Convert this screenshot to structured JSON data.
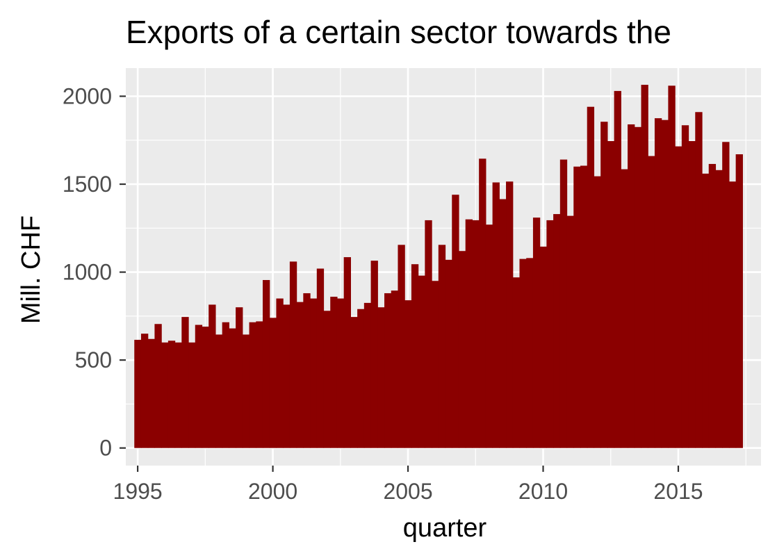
{
  "colors": {
    "panel_background": "#EBEBEB",
    "grid_major": "#FFFFFF",
    "bar_fill": "#8B0000",
    "tick_text": "#4D4D4D",
    "axis_ticks": "#333333"
  },
  "chart_data": {
    "type": "bar",
    "title": "Exports of a certain sector towards the",
    "xlabel": "quarter",
    "ylabel": "Mill. CHF",
    "xlim": [
      1994.56,
      2018.06
    ],
    "ylim": [
      -100,
      2160
    ],
    "x_ticks": [
      1995,
      2000,
      2005,
      2010,
      2015
    ],
    "x_tick_labels": [
      "1995",
      "2000",
      "2005",
      "2010",
      "2015"
    ],
    "y_ticks": [
      0,
      500,
      1000,
      1500,
      2000
    ],
    "y_tick_labels": [
      "0",
      "500",
      "1000",
      "1500",
      "2000"
    ],
    "grid": true,
    "legend": "none",
    "bar_width": 0.25,
    "x": [
      1995.0,
      1995.25,
      1995.5,
      1995.75,
      1996.0,
      1996.25,
      1996.5,
      1996.75,
      1997.0,
      1997.25,
      1997.5,
      1997.75,
      1998.0,
      1998.25,
      1998.5,
      1998.75,
      1999.0,
      1999.25,
      1999.5,
      1999.75,
      2000.0,
      2000.25,
      2000.5,
      2000.75,
      2001.0,
      2001.25,
      2001.5,
      2001.75,
      2002.0,
      2002.25,
      2002.5,
      2002.75,
      2003.0,
      2003.25,
      2003.5,
      2003.75,
      2004.0,
      2004.25,
      2004.5,
      2004.75,
      2005.0,
      2005.25,
      2005.5,
      2005.75,
      2006.0,
      2006.25,
      2006.5,
      2006.75,
      2007.0,
      2007.25,
      2007.5,
      2007.75,
      2008.0,
      2008.25,
      2008.5,
      2008.75,
      2009.0,
      2009.25,
      2009.5,
      2009.75,
      2010.0,
      2010.25,
      2010.5,
      2010.75,
      2011.0,
      2011.25,
      2011.5,
      2011.75,
      2012.0,
      2012.25,
      2012.5,
      2012.75,
      2013.0,
      2013.25,
      2013.5,
      2013.75,
      2014.0,
      2014.25,
      2014.5,
      2014.75,
      2015.0,
      2015.25,
      2015.5,
      2015.75,
      2016.0,
      2016.25,
      2016.5,
      2016.75,
      2017.0,
      2017.25
    ],
    "values": [
      615,
      650,
      620,
      705,
      600,
      610,
      600,
      745,
      600,
      700,
      690,
      815,
      645,
      715,
      680,
      800,
      645,
      715,
      720,
      955,
      740,
      850,
      815,
      1060,
      830,
      880,
      850,
      1020,
      780,
      860,
      850,
      1085,
      745,
      790,
      825,
      1065,
      800,
      880,
      895,
      1155,
      840,
      1045,
      980,
      1295,
      950,
      1155,
      1070,
      1440,
      1120,
      1300,
      1295,
      1645,
      1270,
      1510,
      1415,
      1515,
      970,
      1075,
      1080,
      1310,
      1145,
      1295,
      1330,
      1640,
      1320,
      1600,
      1605,
      1940,
      1545,
      1855,
      1745,
      2030,
      1585,
      1840,
      1825,
      2065,
      1660,
      1875,
      1865,
      2060,
      1715,
      1835,
      1745,
      1910,
      1560,
      1615,
      1580,
      1740,
      1515,
      1670
    ]
  }
}
